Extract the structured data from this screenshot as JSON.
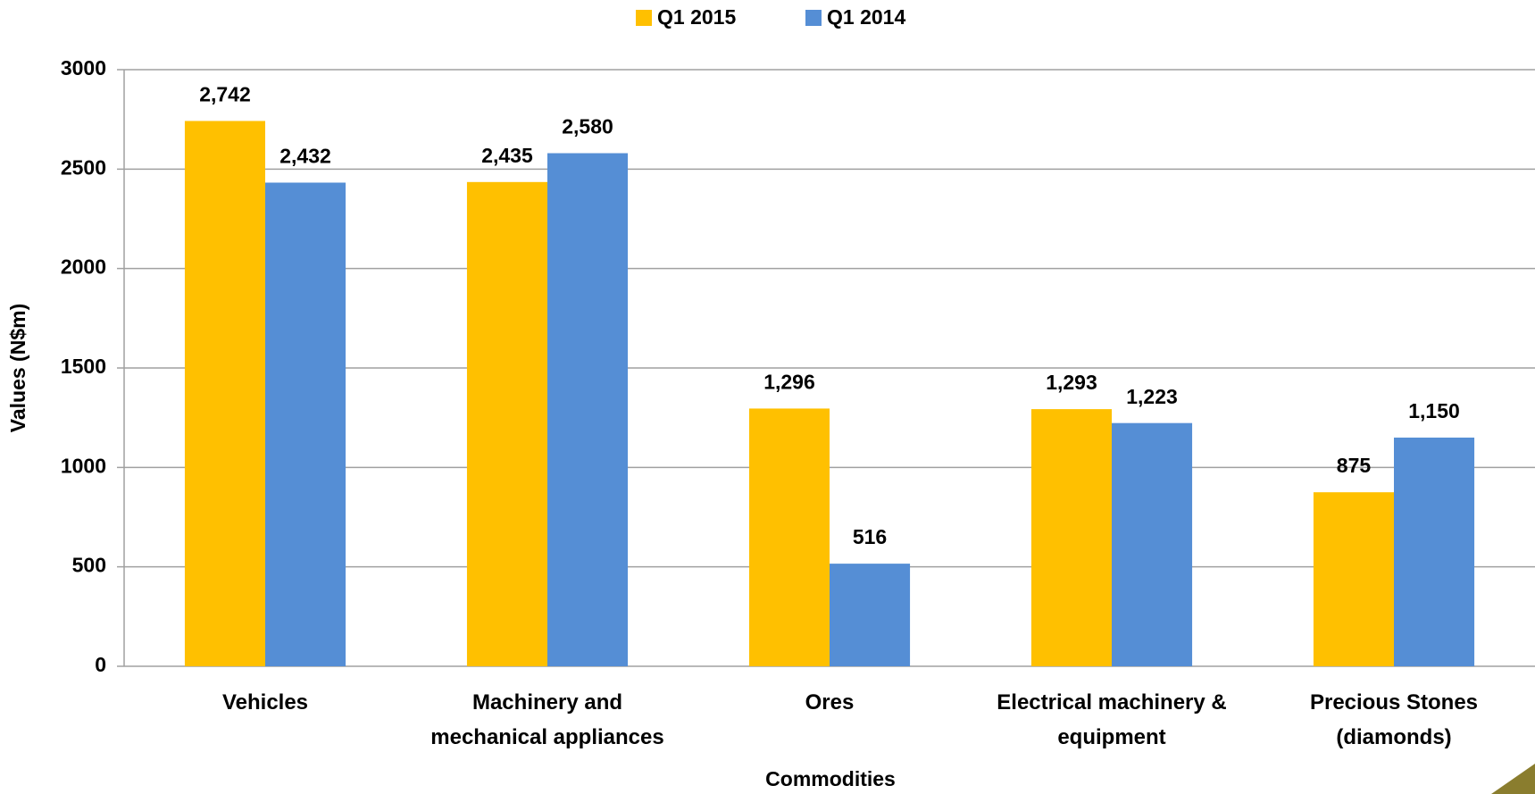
{
  "chart_data": {
    "type": "bar",
    "x_label": "Commodities",
    "y_label": "Values (N$m)",
    "categories": [
      "Vehicles",
      "Machinery and\nmechanical appliances",
      "Ores",
      "Electrical machinery &\nequipment",
      "Precious Stones\n(diamonds)"
    ],
    "series": [
      {
        "name": "Q1 2015",
        "color": "#ffc000",
        "values": [
          2742,
          2435,
          1296,
          1293,
          875
        ],
        "value_labels": [
          "2,742",
          "2,435",
          "1,296",
          "1,293",
          "875"
        ]
      },
      {
        "name": "Q1 2014",
        "color": "#558ed5",
        "values": [
          2432,
          2580,
          516,
          1223,
          1150
        ],
        "value_labels": [
          "2,432",
          "2,580",
          "516",
          "1,223",
          "1,150"
        ]
      }
    ],
    "ylim": [
      0,
      3000
    ],
    "yticks": [
      0,
      500,
      1000,
      1500,
      2000,
      2500,
      3000
    ],
    "grid": true,
    "legend": "top"
  }
}
